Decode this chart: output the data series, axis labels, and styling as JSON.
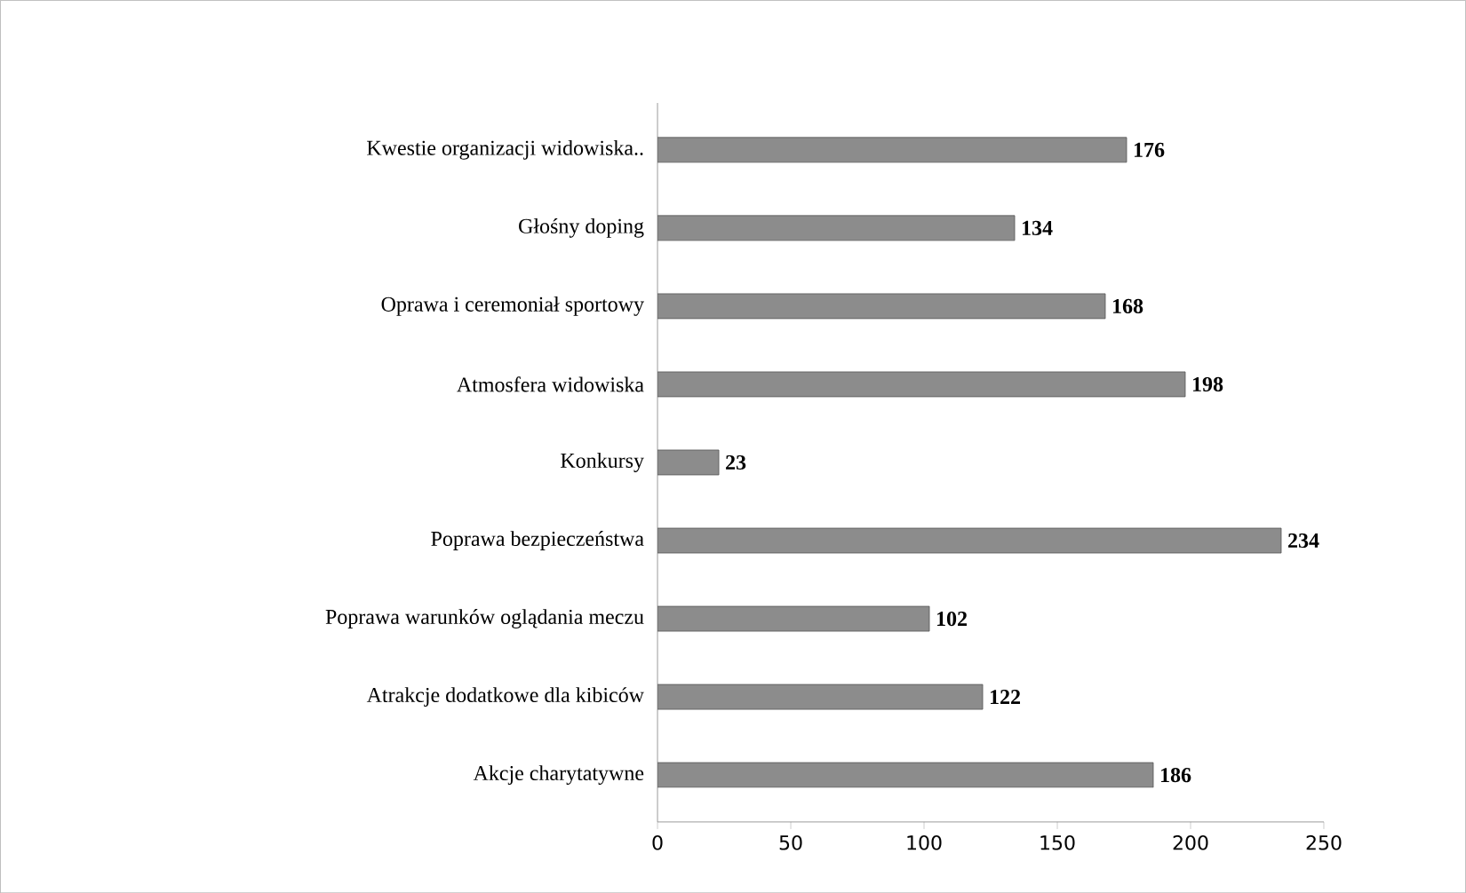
{
  "chart_data": {
    "type": "bar",
    "orientation": "horizontal",
    "categories": [
      "Kwestie organizacji widowiska..",
      "Głośny doping",
      "Oprawa i ceremoniał sportowy",
      "Atmosfera widowiska",
      "Konkursy",
      "Poprawa bezpieczeństwa",
      "Poprawa warunków oglądania meczu",
      "Atrakcje dodatkowe dla kibiców",
      "Akcje charytatywne"
    ],
    "values": [
      176,
      134,
      168,
      198,
      23,
      234,
      102,
      122,
      186
    ],
    "color": "#8c8c8c",
    "xlim": [
      0,
      250
    ],
    "xticks": [
      0,
      50,
      100,
      150,
      200,
      250
    ],
    "data_labels": true
  }
}
